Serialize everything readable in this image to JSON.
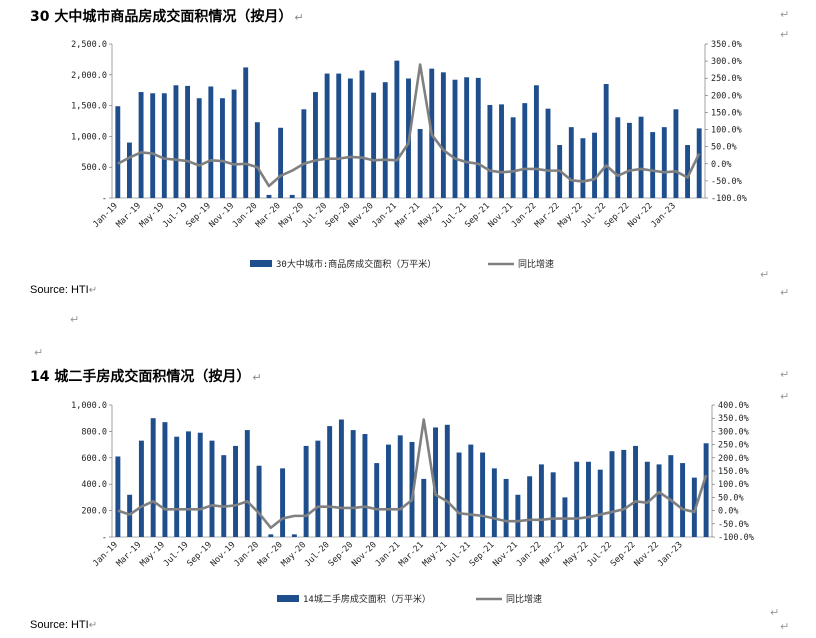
{
  "paragraph_mark": "↵",
  "section1": {
    "title": "30 大中城市商品房成交面积情况（按月）",
    "source": "Source: HTI"
  },
  "section2": {
    "title": "14 城二手房成交面积情况（按月）",
    "source": "Source: HTI"
  },
  "chart_data": [
    {
      "type": "bar+line",
      "title": "30 大中城市商品房成交面积情况（按月）",
      "x_tick_labels": [
        "Jan-19",
        "Mar-19",
        "May-19",
        "Jul-19",
        "Sep-19",
        "Nov-19",
        "Jan-20",
        "Mar-20",
        "May-20",
        "Jul-20",
        "Sep-20",
        "Nov-20",
        "Jan-21",
        "Mar-21",
        "May-21",
        "Jul-21",
        "Sep-21",
        "Nov-21",
        "Jan-22",
        "Mar-22",
        "May-22",
        "Jul-22",
        "Sep-22",
        "Nov-22",
        "Jan-23"
      ],
      "y_left": {
        "range": [
          0,
          2500
        ],
        "ticks": [
          "-",
          "500.0",
          "1,000.0",
          "1,500.0",
          "2,000.0",
          "2,500.0"
        ]
      },
      "y_right": {
        "range": [
          -100,
          350
        ],
        "ticks": [
          "-100.0%",
          "-50.0%",
          "0.0%",
          "50.0%",
          "100.0%",
          "150.0%",
          "200.0%",
          "250.0%",
          "300.0%",
          "350.0%"
        ]
      },
      "colors": {
        "bar": "#1f4e8c",
        "line": "#808080"
      },
      "series": [
        {
          "name": "30大中城市:商品房成交面积（万平米）",
          "kind": "bar",
          "values": [
            1490,
            900,
            1720,
            1700,
            1700,
            1830,
            1820,
            1620,
            1810,
            1620,
            1760,
            2120,
            1230,
            50,
            1140,
            50,
            1440,
            1720,
            2020,
            2020,
            1940,
            2070,
            1710,
            1880,
            2230,
            1940,
            1120,
            2100,
            2040,
            1920,
            1960,
            1950,
            1510,
            1520,
            1310,
            1540,
            1830,
            1450,
            860,
            1150,
            970,
            1060,
            1850,
            1310,
            1220,
            1320,
            1070,
            1150,
            1440,
            860,
            1130
          ]
        },
        {
          "name": "同比增速",
          "kind": "line",
          "values": [
            0,
            18,
            33,
            30,
            15,
            12,
            8,
            -5,
            10,
            8,
            -2,
            0,
            -10,
            -65,
            -35,
            -20,
            0,
            10,
            15,
            15,
            20,
            18,
            10,
            12,
            10,
            60,
            290,
            85,
            40,
            15,
            5,
            0,
            -20,
            -25,
            -22,
            -15,
            -15,
            -20,
            -20,
            -48,
            -52,
            -45,
            -5,
            -35,
            -20,
            -15,
            -20,
            -25,
            -22,
            -40,
            30
          ]
        }
      ]
    },
    {
      "type": "bar+line",
      "title": "14 城二手房成交面积情况（按月）",
      "x_tick_labels": [
        "Jan-19",
        "Mar-19",
        "May-19",
        "Jul-19",
        "Sep-19",
        "Nov-19",
        "Jan-20",
        "Mar-20",
        "May-20",
        "Jul-20",
        "Sep-20",
        "Nov-20",
        "Jan-21",
        "Mar-21",
        "May-21",
        "Jul-21",
        "Sep-21",
        "Nov-21",
        "Jan-22",
        "Mar-22",
        "May-22",
        "Jul-22",
        "Sep-22",
        "Nov-22",
        "Jan-23"
      ],
      "y_left": {
        "range": [
          0,
          1000
        ],
        "ticks": [
          "-",
          "200.0",
          "400.0",
          "600.0",
          "800.0",
          "1,000.0"
        ]
      },
      "y_right": {
        "range": [
          -100,
          400
        ],
        "ticks": [
          "-100.0%",
          "-50.0%",
          "0.0%",
          "50.0%",
          "100.0%",
          "150.0%",
          "200.0%",
          "250.0%",
          "300.0%",
          "350.0%",
          "400.0%"
        ]
      },
      "colors": {
        "bar": "#1f4e8c",
        "line": "#808080"
      },
      "series": [
        {
          "name": "14城二手房成交面积（万平米）",
          "kind": "bar",
          "values": [
            610,
            320,
            730,
            900,
            870,
            760,
            800,
            790,
            730,
            620,
            690,
            810,
            540,
            20,
            520,
            20,
            690,
            730,
            840,
            890,
            810,
            780,
            560,
            700,
            770,
            720,
            440,
            830,
            850,
            640,
            700,
            640,
            520,
            440,
            320,
            460,
            550,
            490,
            300,
            570,
            570,
            510,
            650,
            660,
            690,
            570,
            550,
            620,
            560,
            450,
            710
          ]
        },
        {
          "name": "同比增速",
          "kind": "line",
          "values": [
            0,
            -15,
            15,
            35,
            5,
            5,
            5,
            5,
            20,
            15,
            20,
            35,
            -10,
            -65,
            -30,
            -20,
            -20,
            15,
            15,
            10,
            10,
            15,
            5,
            5,
            5,
            40,
            345,
            60,
            35,
            -10,
            -15,
            -20,
            -30,
            -40,
            -40,
            -35,
            -35,
            -30,
            -30,
            -30,
            -25,
            -15,
            -5,
            5,
            35,
            30,
            70,
            40,
            5,
            -5,
            135
          ]
        }
      ]
    }
  ]
}
